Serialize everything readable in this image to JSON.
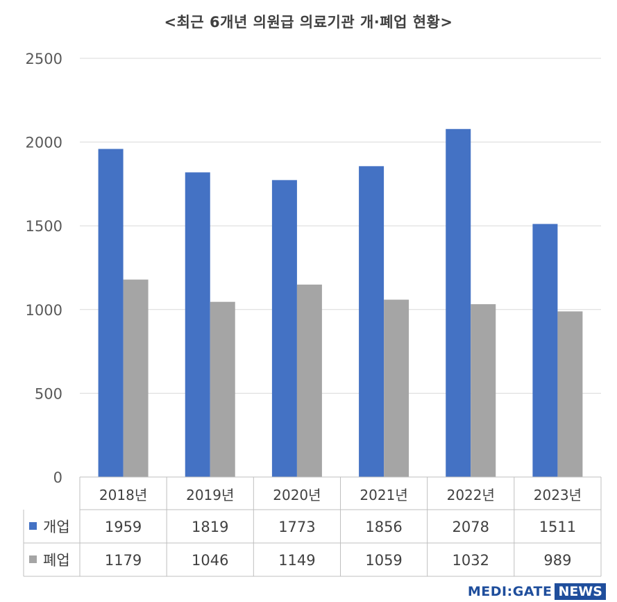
{
  "title": "<최근 6개년 의원급 의료기관 개·폐업 현황>",
  "chart_data": {
    "type": "bar",
    "title": "<최근 6개년 의원급 의료기관 개·폐업 현황>",
    "categories": [
      "2018년",
      "2019년",
      "2020년",
      "2021년",
      "2022년",
      "2023년"
    ],
    "series": [
      {
        "name": "개업",
        "values": [
          1959,
          1819,
          1773,
          1856,
          2078,
          1511
        ],
        "color": "#4472c4"
      },
      {
        "name": "폐업",
        "values": [
          1179,
          1046,
          1149,
          1059,
          1032,
          989
        ],
        "color": "#a5a5a5"
      }
    ],
    "ylim": [
      0,
      2500
    ],
    "yticks": [
      0,
      500,
      1000,
      1500,
      2000,
      2500
    ],
    "grid": true,
    "data_table": true
  },
  "brand": {
    "left": "MEDI:GATE",
    "right": "NEWS"
  }
}
